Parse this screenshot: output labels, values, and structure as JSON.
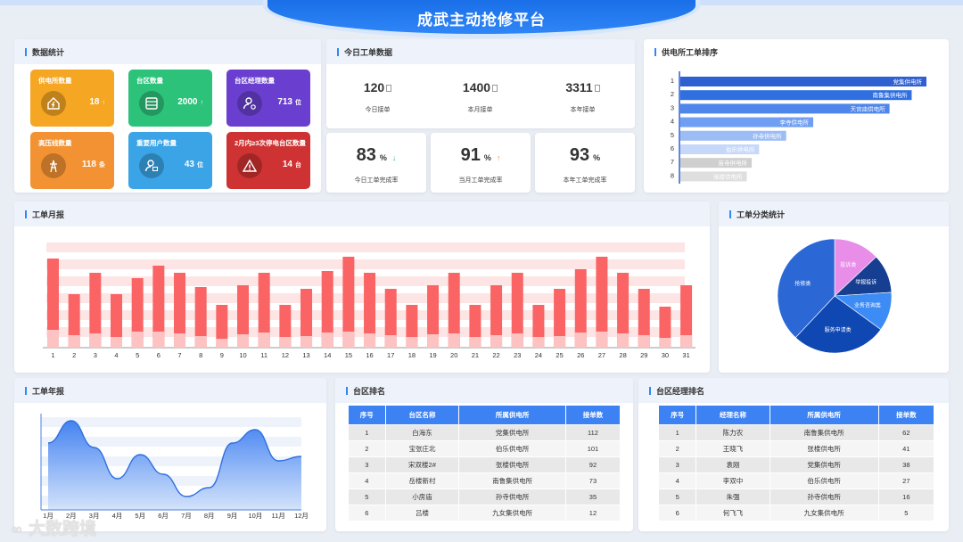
{
  "header": {
    "title": "成武主动抢修平台"
  },
  "stats": {
    "title": "数据统计",
    "cards": [
      {
        "label": "供电所数量",
        "value": "18",
        "unit": "↑",
        "color": "#f5a623",
        "icon": "house-lightning-icon"
      },
      {
        "label": "台区数量",
        "value": "2000",
        "unit": "↑",
        "color": "#2cc27a",
        "icon": "server-icon"
      },
      {
        "label": "台区经理数量",
        "value": "713",
        "unit": "位",
        "color": "#6a3fcf",
        "icon": "user-gear-icon"
      },
      {
        "label": "高压线数量",
        "value": "118",
        "unit": "条",
        "color": "#f39233",
        "icon": "power-tower-icon"
      },
      {
        "label": "重要用户数量",
        "value": "43",
        "unit": "位",
        "color": "#3aa4e6",
        "icon": "user-card-icon"
      },
      {
        "label": "2月内≥3次停电台区数量",
        "value": "14",
        "unit": "台",
        "color": "#cf3232",
        "icon": "warning-icon"
      }
    ]
  },
  "today": {
    "title": "今日工单数据",
    "counts": [
      {
        "value": "120",
        "label": "今日接单"
      },
      {
        "value": "1400",
        "label": "本月接单"
      },
      {
        "value": "3311",
        "label": "本年接单"
      }
    ],
    "rates": [
      {
        "value": "83",
        "unit": "%",
        "arrow": "↓",
        "arrow_color": "#2cc27a",
        "label": "今日工单完成率"
      },
      {
        "value": "91",
        "unit": "%",
        "arrow": "↑",
        "arrow_color": "#f39233",
        "label": "当月工单完成率"
      },
      {
        "value": "93",
        "unit": "%",
        "arrow": "",
        "arrow_color": "#333333",
        "label": "本年工单完成率"
      }
    ]
  },
  "station_rank": {
    "title": "供电所工单排序",
    "chart_data": {
      "type": "bar",
      "orientation": "horizontal",
      "categories": [
        "1",
        "2",
        "3",
        "4",
        "5",
        "6",
        "7",
        "8"
      ],
      "labels": [
        "党集供电所",
        "南鲁集供电所",
        "天宫庙供电所",
        "李寺供电所",
        "孙寺供电所",
        "伯乐供电所",
        "苗寺供电所",
        "张楼供电所"
      ],
      "values": [
        100,
        94,
        85,
        54,
        43,
        32,
        29,
        27
      ],
      "colors": [
        "#2f5fd0",
        "#2f6fe0",
        "#4f86ec",
        "#6f9ef3",
        "#9cbcf6",
        "#c6d8fa",
        "#cfcfcf",
        "#dedede"
      ]
    }
  },
  "monthly": {
    "title": "工单月报",
    "chart_data": {
      "type": "bar",
      "categories": [
        "1",
        "2",
        "3",
        "4",
        "5",
        "6",
        "7",
        "8",
        "9",
        "10",
        "11",
        "12",
        "13",
        "14",
        "15",
        "16",
        "17",
        "18",
        "19",
        "20",
        "21",
        "22",
        "23",
        "24",
        "25",
        "26",
        "27",
        "28",
        "29",
        "30",
        "31"
      ],
      "series": [
        {
          "values": [
            100,
            60,
            84,
            60,
            78,
            92,
            84,
            68,
            48,
            70,
            84,
            48,
            66,
            86,
            102,
            84,
            66,
            48,
            70,
            84,
            48,
            70,
            84,
            48,
            66,
            88,
            102,
            84,
            66,
            46,
            70
          ]
        },
        {
          "values": [
            20,
            14,
            16,
            12,
            18,
            18,
            16,
            13,
            10,
            15,
            17,
            12,
            13,
            17,
            18,
            16,
            14,
            12,
            15,
            16,
            12,
            14,
            16,
            12,
            13,
            17,
            18,
            16,
            14,
            11,
            14
          ]
        }
      ],
      "colors": [
        "#fa6464",
        "#fdc2c2"
      ]
    }
  },
  "category": {
    "title": "工单分类统计",
    "chart_data": {
      "type": "pie",
      "labels": [
        "投诉类",
        "举报投诉",
        "业务咨询类",
        "服务申请类",
        "抢修类"
      ],
      "values": [
        13,
        11,
        11,
        27,
        38
      ],
      "colors": [
        "#e88ee8",
        "#173f91",
        "#3d8cf5",
        "#0f47b3",
        "#2b68d6"
      ]
    }
  },
  "yearly": {
    "title": "工单年报",
    "chart_data": {
      "type": "area",
      "x": [
        "1月",
        "2月",
        "3月",
        "4月",
        "5月",
        "6月",
        "7月",
        "8月",
        "9月",
        "10月",
        "11月",
        "12月"
      ],
      "values": [
        75,
        100,
        70,
        35,
        62,
        40,
        15,
        25,
        75,
        90,
        55,
        60
      ],
      "color": "#3a7cf0"
    }
  },
  "area_rank": {
    "title": "台区排名",
    "columns": [
      "序号",
      "台区名称",
      "所属供电所",
      "接单数"
    ],
    "rows": [
      [
        "1",
        "白海东",
        "党集供电所",
        "112"
      ],
      [
        "2",
        "宝张庄北",
        "伯乐供电所",
        "101"
      ],
      [
        "3",
        "宋双楼2#",
        "张楼供电所",
        "92"
      ],
      [
        "4",
        "岳楼新村",
        "南鲁集供电所",
        "73"
      ],
      [
        "5",
        "小房庙",
        "孙寺供电所",
        "35"
      ],
      [
        "6",
        "吕楼",
        "九女集供电所",
        "12"
      ]
    ]
  },
  "manager_rank": {
    "title": "台区经理排名",
    "columns": [
      "序号",
      "经理名称",
      "所属供电所",
      "接单数"
    ],
    "rows": [
      [
        "1",
        "陈力农",
        "南鲁集供电所",
        "62"
      ],
      [
        "2",
        "王晓飞",
        "张楼供电所",
        "41"
      ],
      [
        "3",
        "袁刚",
        "党集供电所",
        "38"
      ],
      [
        "4",
        "李双中",
        "伯乐供电所",
        "27"
      ],
      [
        "5",
        "朱强",
        "孙寺供电所",
        "16"
      ],
      [
        "6",
        "何飞飞",
        "九女集供电所",
        "5"
      ]
    ]
  },
  "watermark": "大数跨境"
}
